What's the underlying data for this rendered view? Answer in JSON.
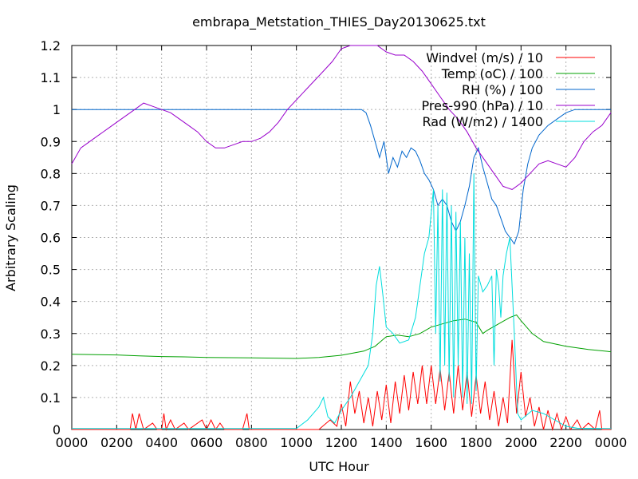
{
  "chart_data": {
    "type": "line",
    "title": "embrapa_Metstation_THIES_Day20130625.txt",
    "xlabel": "UTC Hour",
    "ylabel": "Arbitrary Scaling",
    "xlim": [
      0,
      2400
    ],
    "ylim": [
      0,
      1.2
    ],
    "grid": true,
    "legend_position": "top-right",
    "x_ticks": [
      "0000",
      "0200",
      "0400",
      "0600",
      "0800",
      "1000",
      "1200",
      "1400",
      "1600",
      "1800",
      "2000",
      "2200",
      "0000"
    ],
    "y_ticks": [
      "0",
      "0.1",
      "0.2",
      "0.3",
      "0.4",
      "0.5",
      "0.6",
      "0.7",
      "0.8",
      "0.9",
      "1",
      "1.1",
      "1.2"
    ],
    "series": [
      {
        "name": "Windvel (m/s) / 10",
        "color": "#ff0000",
        "points": [
          [
            0,
            0
          ],
          [
            260,
            0
          ],
          [
            270,
            0.05
          ],
          [
            285,
            0
          ],
          [
            300,
            0.05
          ],
          [
            320,
            0
          ],
          [
            360,
            0.02
          ],
          [
            380,
            0
          ],
          [
            400,
            0
          ],
          [
            410,
            0.05
          ],
          [
            420,
            0
          ],
          [
            440,
            0.03
          ],
          [
            460,
            0
          ],
          [
            500,
            0.02
          ],
          [
            520,
            0
          ],
          [
            580,
            0.03
          ],
          [
            600,
            0
          ],
          [
            620,
            0.03
          ],
          [
            640,
            0
          ],
          [
            660,
            0.02
          ],
          [
            680,
            0
          ],
          [
            700,
            0
          ],
          [
            760,
            0
          ],
          [
            780,
            0.05
          ],
          [
            790,
            0
          ],
          [
            1000,
            0
          ],
          [
            1100,
            0
          ],
          [
            1150,
            0.03
          ],
          [
            1180,
            0.01
          ],
          [
            1200,
            0.08
          ],
          [
            1220,
            0.01
          ],
          [
            1240,
            0.15
          ],
          [
            1260,
            0.05
          ],
          [
            1280,
            0.12
          ],
          [
            1300,
            0.02
          ],
          [
            1320,
            0.1
          ],
          [
            1340,
            0.01
          ],
          [
            1360,
            0.12
          ],
          [
            1380,
            0.03
          ],
          [
            1400,
            0.14
          ],
          [
            1420,
            0.02
          ],
          [
            1440,
            0.15
          ],
          [
            1460,
            0.05
          ],
          [
            1480,
            0.17
          ],
          [
            1500,
            0.06
          ],
          [
            1520,
            0.18
          ],
          [
            1540,
            0.08
          ],
          [
            1560,
            0.2
          ],
          [
            1580,
            0.08
          ],
          [
            1600,
            0.2
          ],
          [
            1620,
            0.08
          ],
          [
            1640,
            0.19
          ],
          [
            1660,
            0.06
          ],
          [
            1680,
            0.18
          ],
          [
            1700,
            0.05
          ],
          [
            1720,
            0.2
          ],
          [
            1740,
            0.06
          ],
          [
            1760,
            0.18
          ],
          [
            1780,
            0.04
          ],
          [
            1800,
            0.17
          ],
          [
            1820,
            0.05
          ],
          [
            1840,
            0.15
          ],
          [
            1860,
            0.03
          ],
          [
            1880,
            0.12
          ],
          [
            1900,
            0.01
          ],
          [
            1920,
            0.1
          ],
          [
            1940,
            0.02
          ],
          [
            1960,
            0.28
          ],
          [
            1980,
            0.05
          ],
          [
            2000,
            0.18
          ],
          [
            2020,
            0.04
          ],
          [
            2040,
            0.1
          ],
          [
            2060,
            0.01
          ],
          [
            2080,
            0.07
          ],
          [
            2100,
            0
          ],
          [
            2120,
            0.06
          ],
          [
            2140,
            0
          ],
          [
            2160,
            0.05
          ],
          [
            2180,
            0
          ],
          [
            2200,
            0.04
          ],
          [
            2220,
            0
          ],
          [
            2250,
            0.03
          ],
          [
            2270,
            0
          ],
          [
            2300,
            0.02
          ],
          [
            2330,
            0
          ],
          [
            2350,
            0.06
          ],
          [
            2360,
            0
          ],
          [
            2400,
            0
          ]
        ]
      },
      {
        "name": "Temp (oC) / 100",
        "color": "#00a000",
        "points": [
          [
            0,
            0.235
          ],
          [
            200,
            0.233
          ],
          [
            300,
            0.23
          ],
          [
            400,
            0.228
          ],
          [
            500,
            0.227
          ],
          [
            600,
            0.225
          ],
          [
            800,
            0.224
          ],
          [
            1000,
            0.222
          ],
          [
            1100,
            0.225
          ],
          [
            1200,
            0.232
          ],
          [
            1300,
            0.245
          ],
          [
            1350,
            0.26
          ],
          [
            1400,
            0.29
          ],
          [
            1450,
            0.295
          ],
          [
            1500,
            0.29
          ],
          [
            1550,
            0.3
          ],
          [
            1600,
            0.32
          ],
          [
            1650,
            0.33
          ],
          [
            1700,
            0.34
          ],
          [
            1750,
            0.345
          ],
          [
            1800,
            0.335
          ],
          [
            1830,
            0.3
          ],
          [
            1850,
            0.31
          ],
          [
            1900,
            0.33
          ],
          [
            1950,
            0.35
          ],
          [
            1980,
            0.358
          ],
          [
            2000,
            0.34
          ],
          [
            2050,
            0.3
          ],
          [
            2100,
            0.275
          ],
          [
            2200,
            0.26
          ],
          [
            2300,
            0.25
          ],
          [
            2400,
            0.243
          ]
        ]
      },
      {
        "name": "RH (%) / 100",
        "color": "#0066cc",
        "points": [
          [
            0,
            1.0
          ],
          [
            1290,
            1.0
          ],
          [
            1310,
            0.99
          ],
          [
            1330,
            0.95
          ],
          [
            1350,
            0.9
          ],
          [
            1370,
            0.85
          ],
          [
            1390,
            0.9
          ],
          [
            1410,
            0.8
          ],
          [
            1430,
            0.85
          ],
          [
            1450,
            0.82
          ],
          [
            1470,
            0.87
          ],
          [
            1490,
            0.85
          ],
          [
            1510,
            0.88
          ],
          [
            1530,
            0.87
          ],
          [
            1550,
            0.84
          ],
          [
            1570,
            0.8
          ],
          [
            1590,
            0.78
          ],
          [
            1610,
            0.75
          ],
          [
            1630,
            0.7
          ],
          [
            1650,
            0.72
          ],
          [
            1670,
            0.7
          ],
          [
            1690,
            0.65
          ],
          [
            1710,
            0.62
          ],
          [
            1730,
            0.65
          ],
          [
            1750,
            0.7
          ],
          [
            1770,
            0.76
          ],
          [
            1790,
            0.85
          ],
          [
            1810,
            0.88
          ],
          [
            1830,
            0.82
          ],
          [
            1850,
            0.77
          ],
          [
            1870,
            0.72
          ],
          [
            1890,
            0.7
          ],
          [
            1910,
            0.66
          ],
          [
            1930,
            0.62
          ],
          [
            1950,
            0.6
          ],
          [
            1970,
            0.58
          ],
          [
            1990,
            0.62
          ],
          [
            2010,
            0.75
          ],
          [
            2030,
            0.83
          ],
          [
            2050,
            0.88
          ],
          [
            2080,
            0.92
          ],
          [
            2120,
            0.95
          ],
          [
            2160,
            0.97
          ],
          [
            2200,
            0.99
          ],
          [
            2240,
            1.0
          ],
          [
            2400,
            1.0
          ]
        ]
      },
      {
        "name": "Pres-990 (hPa) / 10",
        "color": "#9900cc",
        "points": [
          [
            0,
            0.83
          ],
          [
            40,
            0.88
          ],
          [
            80,
            0.9
          ],
          [
            120,
            0.92
          ],
          [
            160,
            0.94
          ],
          [
            200,
            0.96
          ],
          [
            240,
            0.98
          ],
          [
            280,
            1.0
          ],
          [
            320,
            1.02
          ],
          [
            360,
            1.01
          ],
          [
            400,
            1.0
          ],
          [
            440,
            0.99
          ],
          [
            480,
            0.97
          ],
          [
            520,
            0.95
          ],
          [
            560,
            0.93
          ],
          [
            600,
            0.9
          ],
          [
            640,
            0.88
          ],
          [
            680,
            0.88
          ],
          [
            720,
            0.89
          ],
          [
            760,
            0.9
          ],
          [
            800,
            0.9
          ],
          [
            840,
            0.91
          ],
          [
            880,
            0.93
          ],
          [
            920,
            0.96
          ],
          [
            960,
            1.0
          ],
          [
            1000,
            1.03
          ],
          [
            1040,
            1.06
          ],
          [
            1080,
            1.09
          ],
          [
            1120,
            1.12
          ],
          [
            1160,
            1.15
          ],
          [
            1200,
            1.19
          ],
          [
            1240,
            1.2
          ],
          [
            1280,
            1.2
          ],
          [
            1320,
            1.2
          ],
          [
            1360,
            1.2
          ],
          [
            1400,
            1.18
          ],
          [
            1440,
            1.17
          ],
          [
            1480,
            1.17
          ],
          [
            1520,
            1.15
          ],
          [
            1560,
            1.12
          ],
          [
            1600,
            1.08
          ],
          [
            1640,
            1.04
          ],
          [
            1680,
            1.0
          ],
          [
            1720,
            0.97
          ],
          [
            1760,
            0.93
          ],
          [
            1800,
            0.88
          ],
          [
            1840,
            0.84
          ],
          [
            1880,
            0.8
          ],
          [
            1920,
            0.76
          ],
          [
            1960,
            0.75
          ],
          [
            2000,
            0.77
          ],
          [
            2040,
            0.8
          ],
          [
            2080,
            0.83
          ],
          [
            2120,
            0.84
          ],
          [
            2160,
            0.83
          ],
          [
            2200,
            0.82
          ],
          [
            2240,
            0.85
          ],
          [
            2280,
            0.9
          ],
          [
            2320,
            0.93
          ],
          [
            2360,
            0.95
          ],
          [
            2400,
            0.99
          ]
        ]
      },
      {
        "name": "Rad (W/m2) / 1400",
        "color": "#00dddd",
        "points": [
          [
            0,
            0.003
          ],
          [
            1000,
            0.003
          ],
          [
            1050,
            0.03
          ],
          [
            1100,
            0.07
          ],
          [
            1120,
            0.1
          ],
          [
            1140,
            0.04
          ],
          [
            1170,
            0.02
          ],
          [
            1200,
            0.06
          ],
          [
            1240,
            0.1
          ],
          [
            1280,
            0.15
          ],
          [
            1320,
            0.2
          ],
          [
            1340,
            0.3
          ],
          [
            1355,
            0.45
          ],
          [
            1370,
            0.51
          ],
          [
            1385,
            0.42
          ],
          [
            1400,
            0.32
          ],
          [
            1430,
            0.3
          ],
          [
            1460,
            0.27
          ],
          [
            1500,
            0.28
          ],
          [
            1530,
            0.35
          ],
          [
            1550,
            0.45
          ],
          [
            1570,
            0.55
          ],
          [
            1590,
            0.6
          ],
          [
            1610,
            0.75
          ],
          [
            1620,
            0.3
          ],
          [
            1630,
            0.7
          ],
          [
            1640,
            0.15
          ],
          [
            1650,
            0.75
          ],
          [
            1660,
            0.2
          ],
          [
            1670,
            0.74
          ],
          [
            1680,
            0.15
          ],
          [
            1690,
            0.7
          ],
          [
            1700,
            0.1
          ],
          [
            1710,
            0.68
          ],
          [
            1720,
            0.2
          ],
          [
            1730,
            0.65
          ],
          [
            1740,
            0.1
          ],
          [
            1750,
            0.6
          ],
          [
            1760,
            0.08
          ],
          [
            1770,
            0.55
          ],
          [
            1780,
            0.08
          ],
          [
            1790,
            0.8
          ],
          [
            1800,
            0.12
          ],
          [
            1810,
            0.48
          ],
          [
            1830,
            0.43
          ],
          [
            1850,
            0.45
          ],
          [
            1870,
            0.48
          ],
          [
            1880,
            0.2
          ],
          [
            1890,
            0.5
          ],
          [
            1900,
            0.45
          ],
          [
            1910,
            0.35
          ],
          [
            1920,
            0.48
          ],
          [
            1935,
            0.55
          ],
          [
            1950,
            0.6
          ],
          [
            1960,
            0.45
          ],
          [
            1970,
            0.3
          ],
          [
            1985,
            0.05
          ],
          [
            2000,
            0.03
          ],
          [
            2050,
            0.06
          ],
          [
            2100,
            0.05
          ],
          [
            2150,
            0.03
          ],
          [
            2200,
            0.01
          ],
          [
            2250,
            0.004
          ],
          [
            2400,
            0.003
          ]
        ]
      }
    ]
  }
}
